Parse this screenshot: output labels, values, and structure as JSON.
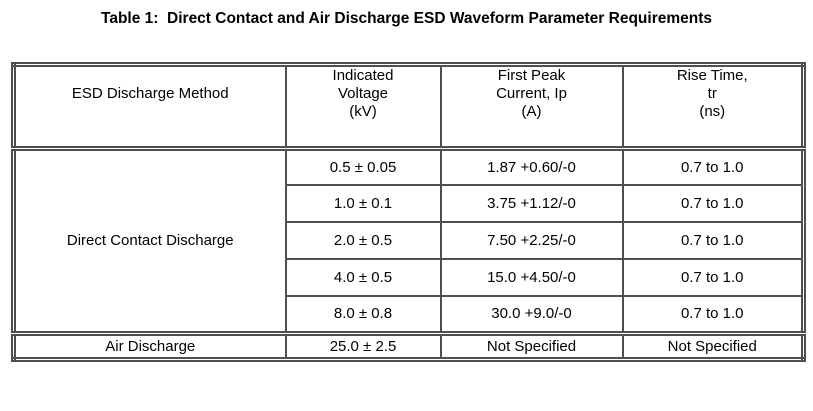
{
  "page": {
    "title": "Table 1:  Direct Contact and Air Discharge ESD Waveform Parameter Requirements"
  },
  "table": {
    "border_color": "#4f4f4f",
    "text_color": "#000000",
    "headers": {
      "method": "ESD Discharge Method",
      "voltage": "Indicated\nVoltage\n(kV)",
      "current": "First Peak\nCurrent, Ip\n(A)",
      "rise_time": "Rise Time,\ntr\n(ns)"
    },
    "direct_contact": {
      "method": "Direct Contact Discharge",
      "rows": [
        {
          "voltage": "0.5 ± 0.05",
          "peak_current": "1.87 +0.60/-0",
          "rise_time": "0.7 to 1.0"
        },
        {
          "voltage": "1.0 ± 0.1",
          "peak_current": "3.75 +1.12/-0",
          "rise_time": "0.7 to 1.0"
        },
        {
          "voltage": "2.0 ± 0.5",
          "peak_current": "7.50 +2.25/-0",
          "rise_time": "0.7 to 1.0"
        },
        {
          "voltage": "4.0 ± 0.5",
          "peak_current": "15.0 +4.50/-0",
          "rise_time": "0.7 to 1.0"
        },
        {
          "voltage": "8.0 ± 0.8",
          "peak_current": "30.0 +9.0/-0",
          "rise_time": "0.7 to 1.0"
        }
      ]
    },
    "air": {
      "method": "Air Discharge",
      "row": {
        "voltage": "25.0 ± 2.5",
        "peak_current": "Not Specified",
        "rise_time": "Not Specified"
      }
    }
  }
}
